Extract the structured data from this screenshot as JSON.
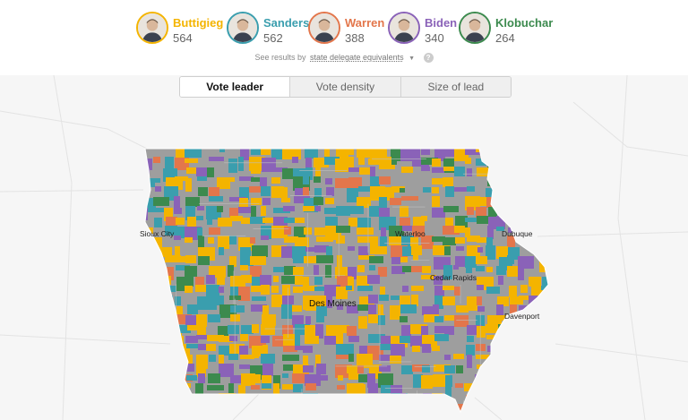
{
  "candidates": [
    {
      "name": "Buttigieg",
      "value": "564",
      "color": "#F4B400",
      "avatar": "buttigieg-avatar-icon"
    },
    {
      "name": "Sanders",
      "value": "562",
      "color": "#3A9EAE",
      "avatar": "sanders-avatar-icon"
    },
    {
      "name": "Warren",
      "value": "388",
      "color": "#E3764B",
      "avatar": "warren-avatar-icon"
    },
    {
      "name": "Biden",
      "value": "340",
      "color": "#8A62B8",
      "avatar": "biden-avatar-icon"
    },
    {
      "name": "Klobuchar",
      "value": "264",
      "color": "#3C8A4E",
      "avatar": "klobuchar-avatar-icon"
    }
  ],
  "results_by": {
    "prefix": "See results by",
    "selected": "state delegate equivalents",
    "caret_icon": "caret-down-icon",
    "help_icon": "help-icon",
    "help_glyph": "?"
  },
  "tabs": [
    {
      "label": "Vote leader",
      "active": true
    },
    {
      "label": "Vote density",
      "active": false
    },
    {
      "label": "Size of lead",
      "active": false
    }
  ],
  "map": {
    "other_color": "#9E9E9E",
    "background_color": "#F6F6F6",
    "cities": [
      {
        "name": "Sioux City"
      },
      {
        "name": "Waterloo"
      },
      {
        "name": "Dubuque"
      },
      {
        "name": "Cedar Rapids"
      },
      {
        "name": "Des Moines"
      },
      {
        "name": "Davenport"
      }
    ]
  }
}
